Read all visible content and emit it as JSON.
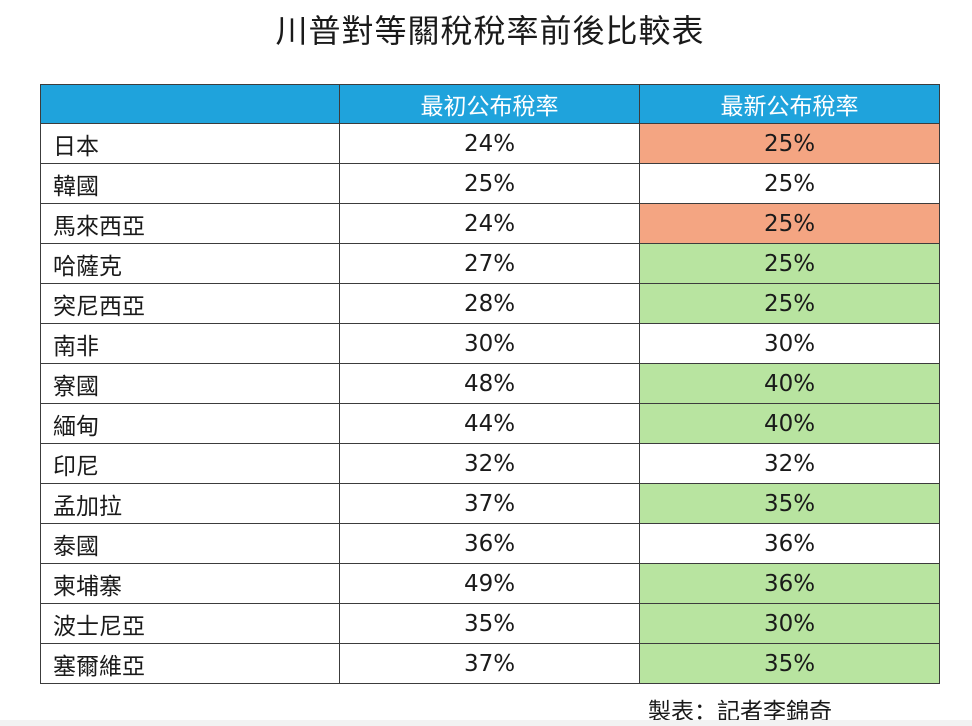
{
  "title": "川普對等關稅稅率前後比較表",
  "colors": {
    "header_bg": "#1fa3dc",
    "increase": "#f4a582",
    "decrease": "#b8e4a0",
    "unchanged": "#ffffff"
  },
  "table": {
    "headers": [
      "",
      "最初公布稅率",
      "最新公布稅率"
    ],
    "rows": [
      {
        "country": "日本",
        "initial": "24%",
        "latest": "25%",
        "change": "increase"
      },
      {
        "country": "韓國",
        "initial": "25%",
        "latest": "25%",
        "change": "unchanged"
      },
      {
        "country": "馬來西亞",
        "initial": "24%",
        "latest": "25%",
        "change": "increase"
      },
      {
        "country": "哈薩克",
        "initial": "27%",
        "latest": "25%",
        "change": "decrease"
      },
      {
        "country": "突尼西亞",
        "initial": "28%",
        "latest": "25%",
        "change": "decrease"
      },
      {
        "country": "南非",
        "initial": "30%",
        "latest": "30%",
        "change": "unchanged"
      },
      {
        "country": "寮國",
        "initial": "48%",
        "latest": "40%",
        "change": "decrease"
      },
      {
        "country": "緬甸",
        "initial": "44%",
        "latest": "40%",
        "change": "decrease"
      },
      {
        "country": "印尼",
        "initial": "32%",
        "latest": "32%",
        "change": "unchanged"
      },
      {
        "country": "孟加拉",
        "initial": "37%",
        "latest": "35%",
        "change": "decrease"
      },
      {
        "country": "泰國",
        "initial": "36%",
        "latest": "36%",
        "change": "unchanged"
      },
      {
        "country": "柬埔寨",
        "initial": "49%",
        "latest": "36%",
        "change": "decrease"
      },
      {
        "country": "波士尼亞",
        "initial": "35%",
        "latest": "30%",
        "change": "decrease"
      },
      {
        "country": "塞爾維亞",
        "initial": "37%",
        "latest": "35%",
        "change": "decrease"
      }
    ]
  },
  "footer": "製表：記者李錦奇"
}
